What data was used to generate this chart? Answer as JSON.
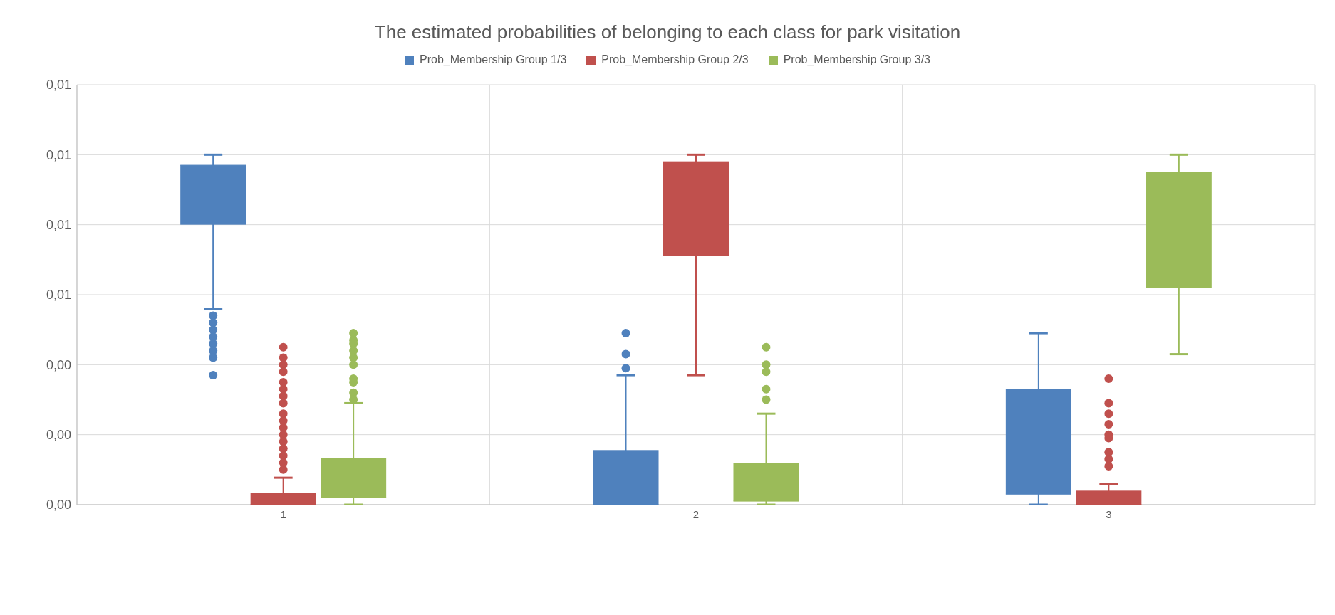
{
  "chart_data": {
    "type": "box",
    "title": "The estimated probabilities of belonging to each class for park visitation",
    "categories": [
      "1",
      "2",
      "3"
    ],
    "legend": "top",
    "grid": true,
    "ylim": [
      0,
      0.012
    ],
    "yticks": [
      {
        "value": 0,
        "label": "0,00"
      },
      {
        "value": 0.002,
        "label": "0,00"
      },
      {
        "value": 0.004,
        "label": "0,00"
      },
      {
        "value": 0.006,
        "label": "0,01"
      },
      {
        "value": 0.008,
        "label": "0,01"
      },
      {
        "value": 0.01,
        "label": "0,01"
      },
      {
        "value": 0.012,
        "label": "0,01"
      }
    ],
    "series": [
      {
        "name": "Prob_Membership Group 1/3",
        "color": "#4f81bd",
        "boxes": [
          {
            "low": 0.0056,
            "q1": 0.008,
            "median": 0.0097,
            "q3": 0.0097,
            "high": 0.01,
            "outliers": [
              0.0054,
              0.0052,
              0.005,
              0.0048,
              0.0046,
              0.0044,
              0.0042,
              0.0037
            ]
          },
          {
            "low": 0,
            "q1": 0,
            "median": 0,
            "q3": 0.00156,
            "high": 0.0037,
            "outliers": [
              0.0049,
              0.0043,
              0.0039
            ]
          },
          {
            "low": 0,
            "q1": 0.0003,
            "median": 0.0003,
            "q3": 0.0033,
            "high": 0.0049
          }
        ]
      },
      {
        "name": "Prob_Membership Group 2/3",
        "color": "#c0504d",
        "boxes": [
          {
            "low": 0,
            "q1": 0,
            "median": 0,
            "q3": 0.00034,
            "high": 0.00077,
            "outliers": [
              0.0045,
              0.0042,
              0.004,
              0.0038,
              0.0035,
              0.0033,
              0.0031,
              0.0029,
              0.0026,
              0.0024,
              0.0022,
              0.002,
              0.0018,
              0.0016,
              0.0014,
              0.0012,
              0.001
            ]
          },
          {
            "low": 0.0037,
            "q1": 0.0071,
            "median": 0.0098,
            "q3": 0.0098,
            "high": 0.01
          },
          {
            "low": 0,
            "q1": 0,
            "median": 0,
            "q3": 0.0004,
            "high": 0.0006,
            "outliers": [
              0.0036,
              0.0029,
              0.0026,
              0.0023,
              0.002,
              0.0019,
              0.0015,
              0.0013,
              0.0011
            ]
          }
        ]
      },
      {
        "name": "Prob_Membership Group 3/3",
        "color": "#9bbb59",
        "boxes": [
          {
            "low": 0,
            "q1": 0.0002,
            "median": 0.0002,
            "q3": 0.00134,
            "high": 0.0029,
            "outliers": [
              0.0049,
              0.0047,
              0.0046,
              0.0044,
              0.0042,
              0.004,
              0.0036,
              0.0035,
              0.0032,
              0.003
            ]
          },
          {
            "low": 0,
            "q1": 0.0001,
            "median": 0.0001,
            "q3": 0.0012,
            "high": 0.0026,
            "outliers": [
              0.0045,
              0.004,
              0.0038,
              0.0033,
              0.003
            ]
          },
          {
            "low": 0.0043,
            "q1": 0.0062,
            "median": 0.0095,
            "q3": 0.0095,
            "high": 0.01
          }
        ]
      }
    ]
  }
}
